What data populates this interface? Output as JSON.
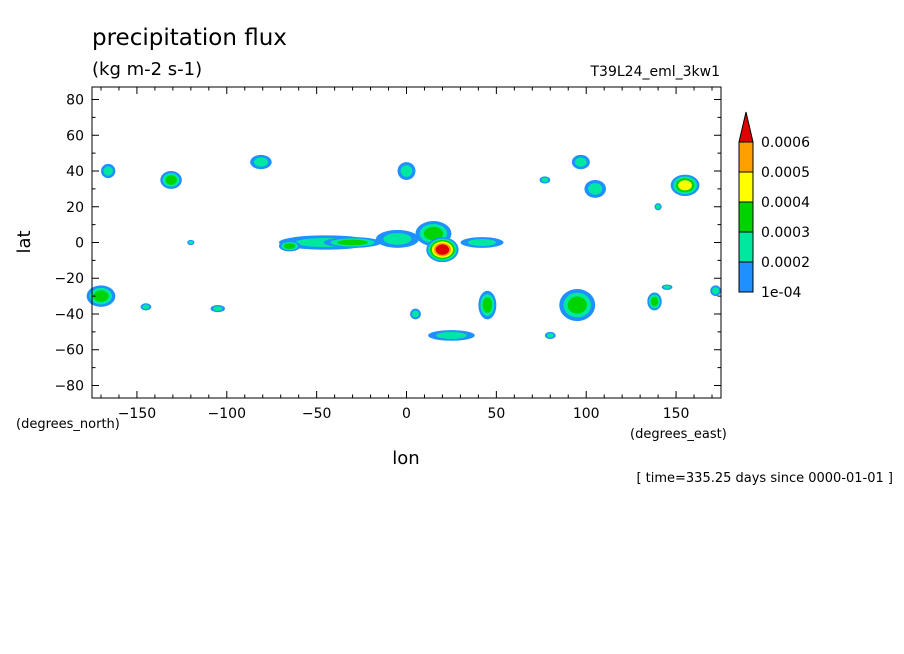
{
  "title": "precipitation flux",
  "units": "(kg m-2 s-1)",
  "run_label": "T39L24_eml_3kw1",
  "footer": "[ time=335.25 days since 0000-01-01 ]",
  "chart_data": {
    "type": "heatmap",
    "xlabel": "lon",
    "ylabel": "lat",
    "x_units": "(degrees_east)",
    "y_units": "(degrees_north)",
    "xlim": [
      -175,
      175
    ],
    "ylim": [
      -87,
      87
    ],
    "x_ticks": [
      -150,
      -100,
      -50,
      0,
      50,
      100,
      150
    ],
    "y_ticks": [
      -80,
      -60,
      -40,
      -20,
      0,
      20,
      40,
      60,
      80
    ],
    "grid": false,
    "colorbar": {
      "position": "right",
      "labels": [
        "1e-04",
        "0.0002",
        "0.0003",
        "0.0004",
        "0.0005",
        "0.0006"
      ],
      "levels": [
        0.0001,
        0.0002,
        0.0003,
        0.0004,
        0.0005,
        0.0006
      ],
      "colors": [
        "#1e90ff",
        "#00e8a0",
        "#00d400",
        "#ffff00",
        "#ffa000",
        "#e00000"
      ]
    },
    "features": [
      {
        "lon": -166,
        "lat": 40,
        "rlon": 4,
        "rlat": 4,
        "level": 1
      },
      {
        "lon": -131,
        "lat": 35,
        "rlon": 6,
        "rlat": 5,
        "level": 2
      },
      {
        "lon": -81,
        "lat": 45,
        "rlon": 6,
        "rlat": 4,
        "level": 1
      },
      {
        "lon": 0,
        "lat": 40,
        "rlon": 5,
        "rlat": 5,
        "level": 1
      },
      {
        "lon": 97,
        "lat": 45,
        "rlon": 5,
        "rlat": 4,
        "level": 1
      },
      {
        "lon": 105,
        "lat": 30,
        "rlon": 6,
        "rlat": 5,
        "level": 1
      },
      {
        "lon": 155,
        "lat": 32,
        "rlon": 8,
        "rlat": 6,
        "level": 3
      },
      {
        "lon": -45,
        "lat": 0,
        "rlon": 26,
        "rlat": 4,
        "level": 1
      },
      {
        "lon": -30,
        "lat": 0,
        "rlon": 16,
        "rlat": 3,
        "level": 2
      },
      {
        "lon": -5,
        "lat": 2,
        "rlon": 12,
        "rlat": 5,
        "level": 1
      },
      {
        "lon": 15,
        "lat": 5,
        "rlon": 10,
        "rlat": 7,
        "level": 2
      },
      {
        "lon": 20,
        "lat": -4,
        "rlon": 9,
        "rlat": 7,
        "level": 5
      },
      {
        "lon": 42,
        "lat": 0,
        "rlon": 12,
        "rlat": 3,
        "level": 1
      },
      {
        "lon": -65,
        "lat": -2,
        "rlon": 6,
        "rlat": 3,
        "level": 2
      },
      {
        "lon": -170,
        "lat": -30,
        "rlon": 8,
        "rlat": 6,
        "level": 2
      },
      {
        "lon": 45,
        "lat": -35,
        "rlon": 5,
        "rlat": 8,
        "level": 2
      },
      {
        "lon": 25,
        "lat": -52,
        "rlon": 13,
        "rlat": 3,
        "level": 1
      },
      {
        "lon": 95,
        "lat": -35,
        "rlon": 10,
        "rlat": 9,
        "level": 2
      },
      {
        "lon": 138,
        "lat": -33,
        "rlon": 4,
        "rlat": 5,
        "level": 2
      },
      {
        "lon": -105,
        "lat": -37,
        "rlon": 4,
        "rlat": 2,
        "level": 1
      },
      {
        "lon": -145,
        "lat": -36,
        "rlon": 3,
        "rlat": 2,
        "level": 1
      },
      {
        "lon": 172,
        "lat": -27,
        "rlon": 3,
        "rlat": 3,
        "level": 1
      },
      {
        "lon": -120,
        "lat": 0,
        "rlon": 2,
        "rlat": 1.5,
        "level": 1
      },
      {
        "lon": 145,
        "lat": -25,
        "rlon": 3,
        "rlat": 1.5,
        "level": 1
      },
      {
        "lon": 77,
        "lat": 35,
        "rlon": 3,
        "rlat": 2,
        "level": 1
      },
      {
        "lon": 140,
        "lat": 20,
        "rlon": 2,
        "rlat": 2,
        "level": 1
      },
      {
        "lon": 5,
        "lat": -40,
        "rlon": 3,
        "rlat": 3,
        "level": 1
      },
      {
        "lon": 80,
        "lat": -52,
        "rlon": 3,
        "rlat": 2,
        "level": 1
      }
    ]
  }
}
